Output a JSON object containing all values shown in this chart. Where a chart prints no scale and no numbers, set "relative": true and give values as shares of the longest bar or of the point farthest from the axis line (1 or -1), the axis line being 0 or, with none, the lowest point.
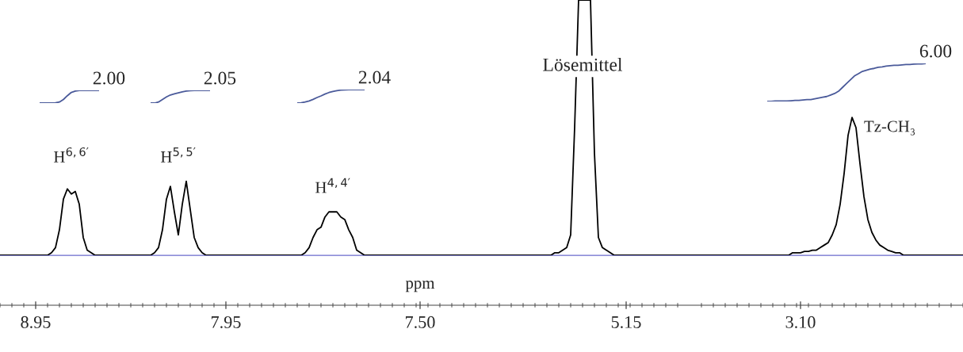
{
  "chart_data": [
    {
      "type": "line",
      "relative": true,
      "xlabel": "ppm",
      "categories": [
        null,
        null,
        null,
        null,
        null,
        null,
        null,
        null,
        null,
        null,
        null,
        null,
        null,
        null,
        null,
        null,
        null,
        null,
        null,
        null,
        null,
        null,
        null,
        null,
        null,
        null,
        null,
        null,
        null,
        null,
        null,
        null,
        null,
        null,
        null,
        null,
        null,
        null,
        null,
        null,
        null,
        null,
        null,
        null,
        null,
        null,
        null,
        null,
        null,
        null,
        null,
        null,
        null,
        null,
        null,
        null,
        null,
        null,
        null,
        null,
        null,
        null,
        null,
        null,
        null,
        null,
        null,
        null,
        null,
        null,
        null,
        null,
        null,
        null,
        null,
        null,
        null,
        null,
        null,
        null,
        null,
        null,
        null,
        null,
        null,
        null,
        null,
        null,
        null,
        null,
        null,
        null,
        null,
        null,
        null,
        null,
        null,
        null,
        null,
        null,
        null,
        null,
        null,
        null,
        null,
        null,
        null,
        null,
        null,
        null,
        null,
        null,
        null,
        null,
        null,
        null,
        null,
        null,
        null,
        null,
        null,
        null,
        null,
        null,
        null,
        null,
        null,
        null,
        null,
        null,
        null,
        null,
        null,
        null,
        null,
        null,
        null,
        null,
        null,
        null,
        null,
        null,
        null,
        null,
        null,
        null,
        null,
        null,
        null,
        null,
        null,
        null,
        null,
        null,
        null,
        null,
        null,
        null,
        null,
        null,
        null,
        null,
        null,
        null,
        null,
        null,
        null,
        null,
        null,
        null,
        null,
        null,
        null,
        null,
        null,
        null,
        null,
        null,
        null,
        null,
        null,
        null,
        null,
        null,
        null,
        null,
        null,
        null,
        null,
        null,
        null,
        null,
        null,
        null,
        null,
        null,
        null,
        null,
        null,
        null,
        null,
        null,
        null,
        null,
        null,
        null,
        null,
        null,
        null,
        null,
        null,
        null,
        null,
        null,
        null,
        null,
        null,
        null,
        null,
        null,
        null,
        null,
        null,
        null,
        null,
        null,
        null,
        null,
        null,
        null,
        null,
        null,
        null,
        null,
        null,
        null,
        null,
        null,
        null,
        null,
        null,
        null,
        null,
        null
      ],
      "series": [
        {
          "color": "#000000",
          "values": [
            0,
            0,
            0,
            0,
            0,
            0,
            0,
            0,
            0,
            0,
            0,
            0,
            0,
            0.01,
            0.03,
            0.1,
            0.22,
            0.26,
            0.24,
            0.25,
            0.2,
            0.07,
            0.02,
            0.01,
            0,
            0,
            0,
            0,
            0,
            0,
            0,
            0,
            null,
            0,
            0,
            0,
            0,
            0,
            0,
            0.01,
            0.03,
            0.1,
            0.22,
            0.27,
            0.17,
            0.08,
            0.2,
            0.29,
            0.18,
            0.07,
            0.03,
            0.01,
            0,
            0,
            0,
            0,
            0,
            0,
            0,
            0,
            0,
            0,
            0,
            0,
            0,
            null,
            0,
            0,
            0,
            0,
            0,
            0,
            0,
            0,
            0,
            0,
            0,
            0.01,
            0.03,
            0.07,
            0.1,
            0.11,
            0.15,
            0.17,
            0.17,
            0.17,
            0.15,
            0.14,
            0.1,
            0.07,
            0.02,
            0.01,
            0,
            0,
            0,
            0,
            0,
            0,
            0,
            0,
            0,
            0,
            0,
            0,
            0,
            0,
            0,
            0,
            0,
            0,
            0,
            0,
            0,
            null,
            0,
            0,
            0,
            0,
            0,
            0,
            0,
            0,
            0,
            0,
            0,
            0,
            0,
            0,
            0,
            0,
            0,
            0,
            0,
            0,
            0,
            0,
            0,
            0,
            0,
            0,
            0.01,
            0.01,
            0.02,
            0.03,
            0.08,
            0.5,
            1,
            1,
            1,
            1,
            0.4,
            0.07,
            0.03,
            0.02,
            0.01,
            0,
            0,
            0,
            0,
            0,
            0,
            0,
            0,
            0,
            0,
            0,
            0,
            0,
            0,
            0,
            0,
            0,
            0,
            0,
            null,
            0,
            0,
            0,
            0,
            0,
            0,
            0,
            0,
            0,
            0,
            0,
            0,
            0,
            0,
            0,
            0,
            0,
            0,
            0,
            0,
            0,
            0,
            0,
            0,
            0,
            0.01,
            0.01,
            0.01,
            0.015,
            0.015,
            0.02,
            0.02,
            0.03,
            0.04,
            0.05,
            0.08,
            0.12,
            0.2,
            0.32,
            0.47,
            0.54,
            0.5,
            0.36,
            0.23,
            0.14,
            0.09,
            0.06,
            0.04,
            0.03,
            0.02,
            0.015,
            0.01,
            0.01,
            0,
            0,
            0,
            0,
            0,
            0,
            0,
            0,
            0,
            0,
            0,
            0,
            0,
            0,
            0,
            0
          ]
        }
      ],
      "annotations": [
        "H$^{6,6′}$",
        "H$^{5,5′}$",
        "H$^{4,4′}$",
        "Lösemittel",
        "Tz-CH₃",
        "8.95",
        "7.95",
        "7.50",
        "5.15",
        "3.10"
      ]
    },
    {
      "type": "line",
      "relative": true,
      "categories": [
        null,
        null,
        null,
        null,
        null,
        null,
        null,
        null,
        null,
        null,
        null,
        null,
        null,
        null,
        null,
        null
      ],
      "series": [
        {
          "color": "#4a5a9a",
          "values": [
            0,
            0,
            0,
            0,
            0.02,
            0.08,
            0.28,
            0.58,
            0.84,
            0.94,
            1,
            1,
            1,
            1,
            1,
            1
          ]
        }
      ],
      "annotations": [
        "2.00"
      ]
    },
    {
      "type": "line",
      "relative": true,
      "categories": [
        null,
        null,
        null,
        null,
        null,
        null,
        null,
        null,
        null,
        null,
        null,
        null,
        null,
        null,
        null,
        null
      ],
      "series": [
        {
          "color": "#4a5a9a",
          "values": [
            0,
            0,
            0.08,
            0.28,
            0.48,
            0.64,
            0.72,
            0.8,
            0.88,
            0.94,
            0.98,
            1,
            1,
            1,
            1,
            1
          ]
        }
      ],
      "annotations": [
        "2.05"
      ]
    },
    {
      "type": "line",
      "relative": true,
      "categories": [
        null,
        null,
        null,
        null,
        null,
        null,
        null,
        null,
        null,
        null,
        null,
        null,
        null,
        null,
        null,
        null,
        null,
        null
      ],
      "series": [
        {
          "color": "#4a5a9a",
          "values": [
            0,
            0.02,
            0.08,
            0.16,
            0.27,
            0.41,
            0.53,
            0.67,
            0.78,
            0.86,
            0.92,
            0.96,
            0.98,
            1,
            1,
            1,
            1,
            1
          ]
        }
      ],
      "annotations": [
        "2.04"
      ]
    },
    {
      "type": "line",
      "relative": true,
      "categories": [
        null,
        null,
        null,
        null,
        null,
        null,
        null,
        null,
        null,
        null,
        null,
        null,
        null,
        null,
        null,
        null,
        null,
        null,
        null,
        null,
        null,
        null,
        null,
        null,
        null,
        null,
        null,
        null,
        null,
        null,
        null,
        null,
        null,
        null,
        null,
        null,
        null,
        null,
        null,
        null,
        null
      ],
      "series": [
        {
          "color": "#4a5a9a",
          "values": [
            0,
            0,
            0.01,
            0.01,
            0.01,
            0.01,
            0.02,
            0.03,
            0.03,
            0.04,
            0.05,
            0.05,
            0.07,
            0.09,
            0.11,
            0.13,
            0.17,
            0.21,
            0.27,
            0.37,
            0.47,
            0.57,
            0.67,
            0.73,
            0.79,
            0.82,
            0.85,
            0.87,
            0.9,
            0.91,
            0.93,
            0.94,
            0.95,
            0.95,
            0.96,
            0.97,
            0.97,
            0.98,
            0.99,
            0.99,
            1
          ]
        }
      ],
      "annotations": [
        "6.00"
      ]
    }
  ]
}
